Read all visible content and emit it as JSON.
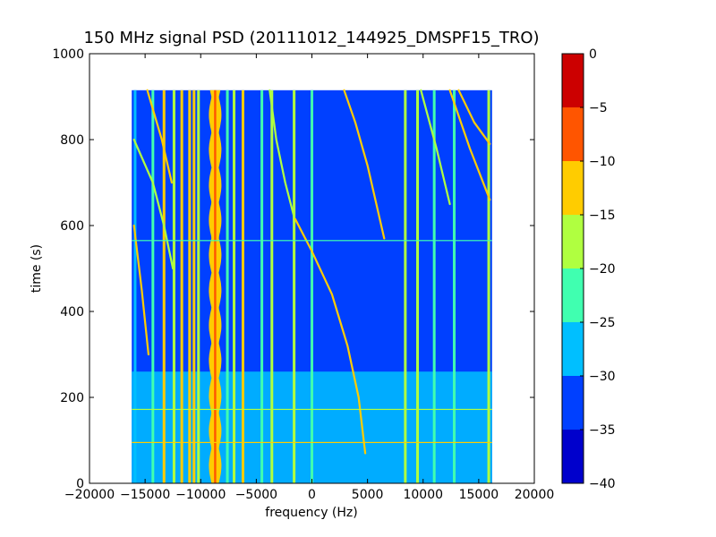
{
  "chart_data": {
    "type": "heatmap",
    "title": "150 MHz signal PSD (20111012_144925_DMSPF15_TRO)",
    "xlabel": "frequency (Hz)",
    "ylabel": "time (s)",
    "xlim": [
      -20000,
      20000
    ],
    "ylim": [
      0,
      1000
    ],
    "xticks": [
      -20000,
      -15000,
      -10000,
      -5000,
      0,
      5000,
      10000,
      15000,
      20000
    ],
    "xtick_labels": [
      "−20000",
      "−15000",
      "−10000",
      "−5000",
      "0",
      "5000",
      "10000",
      "15000",
      "20000"
    ],
    "yticks": [
      0,
      200,
      400,
      600,
      800,
      1000
    ],
    "ytick_labels": [
      "0",
      "200",
      "400",
      "600",
      "800",
      "1000"
    ],
    "data_extent": {
      "freq": [
        -16200,
        16200
      ],
      "time": [
        0,
        915
      ]
    },
    "background_level": -35,
    "low_time_region": {
      "freq": [
        -16200,
        16200
      ],
      "time": [
        0,
        260
      ],
      "level": -30
    },
    "vertical_lines": [
      {
        "freq": -15900,
        "level": -30
      },
      {
        "freq": -14300,
        "level": -25
      },
      {
        "freq": -13300,
        "level": -15
      },
      {
        "freq": -12400,
        "level": -20
      },
      {
        "freq": -11700,
        "level": -15
      },
      {
        "freq": -11000,
        "level": -15
      },
      {
        "freq": -10600,
        "level": -15
      },
      {
        "freq": -10200,
        "level": -20
      },
      {
        "freq": -7600,
        "level": -25
      },
      {
        "freq": -7000,
        "level": -20
      },
      {
        "freq": -6200,
        "level": -15
      },
      {
        "freq": -4500,
        "level": -25
      },
      {
        "freq": -3600,
        "level": -20
      },
      {
        "freq": -1600,
        "level": -20
      },
      {
        "freq": 0,
        "level": -25
      },
      {
        "freq": 8400,
        "level": -20
      },
      {
        "freq": 9500,
        "level": -20
      },
      {
        "freq": 11000,
        "level": -25
      },
      {
        "freq": 12800,
        "level": -25
      },
      {
        "freq": 15900,
        "level": -20
      }
    ],
    "pulsating_band": {
      "freq_center": -8700,
      "level": -15,
      "core_level": -10
    },
    "traces": [
      {
        "name": "",
        "level": -15,
        "points": [
          [
            6500,
            570
          ],
          [
            5000,
            740
          ],
          [
            3900,
            840
          ],
          [
            2900,
            915
          ]
        ]
      },
      {
        "name": "",
        "level": -15,
        "points": [
          [
            -1500,
            615
          ],
          [
            0,
            540
          ],
          [
            1800,
            440
          ],
          [
            3200,
            320
          ],
          [
            4200,
            200
          ],
          [
            4800,
            70
          ]
        ]
      },
      {
        "name": "",
        "level": -20,
        "points": [
          [
            -16000,
            800
          ],
          [
            -14300,
            700
          ],
          [
            -13300,
            600
          ],
          [
            -12500,
            500
          ]
        ]
      },
      {
        "name": "",
        "level": -15,
        "points": [
          [
            -16000,
            600
          ],
          [
            -15300,
            450
          ],
          [
            -14700,
            300
          ]
        ]
      },
      {
        "name": "",
        "level": -15,
        "points": [
          [
            -14800,
            915
          ],
          [
            -13500,
            800
          ],
          [
            -12600,
            700
          ]
        ]
      },
      {
        "name": "",
        "level": -20,
        "points": [
          [
            9800,
            915
          ],
          [
            11200,
            780
          ],
          [
            12400,
            650
          ]
        ]
      },
      {
        "name": "",
        "level": -15,
        "points": [
          [
            12400,
            915
          ],
          [
            14200,
            780
          ],
          [
            16000,
            660
          ]
        ]
      },
      {
        "name": "",
        "level": -15,
        "points": [
          [
            13200,
            915
          ],
          [
            14600,
            840
          ],
          [
            16000,
            790
          ]
        ]
      },
      {
        "name": "",
        "level": -20,
        "points": [
          [
            -3800,
            915
          ],
          [
            -3200,
            800
          ],
          [
            -2400,
            700
          ],
          [
            -1600,
            620
          ]
        ]
      }
    ],
    "horizontal_lines": [
      {
        "time": 565,
        "level": -25
      },
      {
        "time": 172,
        "level": -20
      },
      {
        "time": 95,
        "level": -15
      }
    ],
    "colorbar": {
      "levels": [
        -40,
        -35,
        -30,
        -25,
        -20,
        -15,
        -10,
        -5,
        0
      ],
      "tick_labels": [
        "−40",
        "−35",
        "−30",
        "−25",
        "−20",
        "−15",
        "−10",
        "−5",
        "0"
      ],
      "colors": [
        "#0000cc",
        "#0040ff",
        "#00bfff",
        "#40ffb0",
        "#b0ff40",
        "#ffcc00",
        "#ff5500",
        "#cc0000"
      ]
    },
    "grid": false
  }
}
